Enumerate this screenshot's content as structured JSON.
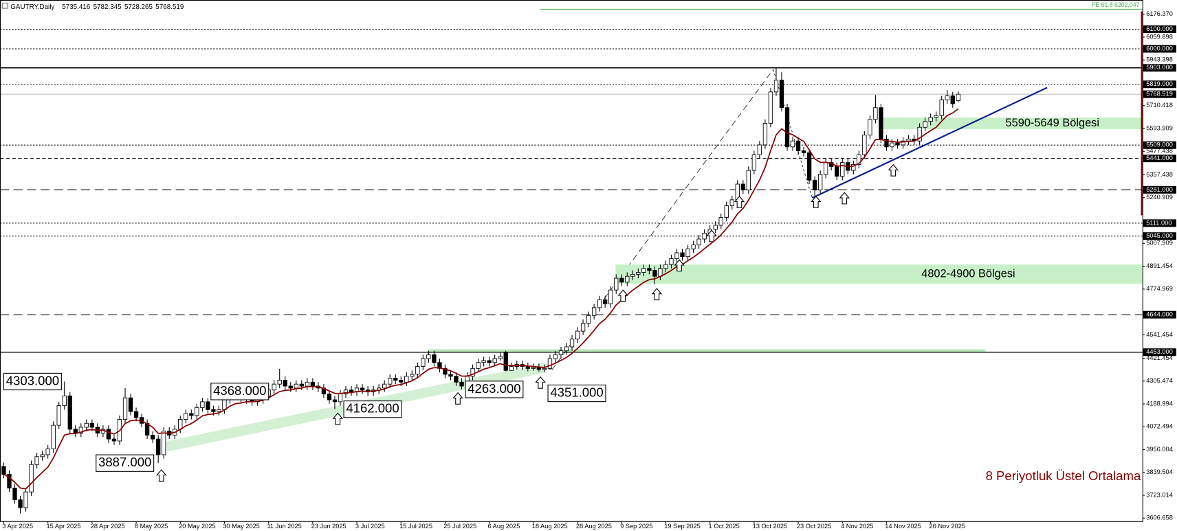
{
  "chart_data": {
    "type": "candlestick",
    "title": "GAUTRY,Daily",
    "categories": [
      "3 Apr 2025",
      null,
      null,
      null,
      null,
      null,
      null,
      null,
      "15 Apr 2025",
      null,
      null,
      null,
      null,
      null,
      null,
      null,
      "28 Apr 2025",
      null,
      null,
      null,
      null,
      null,
      null,
      null,
      "8 May 2025",
      null,
      null,
      null,
      null,
      null,
      null,
      null,
      "20 May 2025",
      null,
      null,
      null,
      null,
      null,
      null,
      null,
      "30 May 2025",
      null,
      null,
      null,
      null,
      null,
      null,
      null,
      "11 Jun 2025",
      null,
      null,
      null,
      null,
      null,
      null,
      null,
      "23 Jun 2025",
      null,
      null,
      null,
      null,
      null,
      null,
      null,
      "3 Jul 2025",
      null,
      null,
      null,
      null,
      null,
      null,
      null,
      "15 Jul 2025",
      null,
      null,
      null,
      null,
      null,
      null,
      null,
      "25 Jul 2025",
      null,
      null,
      null,
      null,
      null,
      null,
      null,
      "6 Aug 2025",
      null,
      null,
      null,
      null,
      null,
      null,
      null,
      "18 Aug 2025",
      null,
      null,
      null,
      null,
      null,
      null,
      null,
      "28 Aug 2025",
      null,
      null,
      null,
      null,
      null,
      null,
      null,
      "9 Sep 2025",
      null,
      null,
      null,
      null,
      null,
      null,
      null,
      "19 Sep 2025",
      null,
      null,
      null,
      null,
      null,
      null,
      null,
      "1 Oct 2025",
      null,
      null,
      null,
      null,
      null,
      null,
      null,
      "13 Oct 2025",
      null,
      null,
      null,
      null,
      null,
      null,
      null,
      "23 Oct 2025",
      null,
      null,
      null,
      null,
      null,
      null,
      null,
      "4 Nov 2025",
      null,
      null,
      null,
      null,
      null,
      null,
      null,
      "14 Nov 2025",
      null,
      null,
      null,
      null,
      null,
      null,
      null,
      "26 Nov 2025",
      null,
      null,
      null,
      null,
      null
    ],
    "open": [
      3870,
      3830,
      3760,
      3700,
      3660,
      3740,
      3880,
      3920,
      3930,
      3960,
      4080,
      4180,
      4230,
      4060,
      4040,
      4070,
      4090,
      4070,
      4040,
      4060,
      4010,
      4000,
      4110,
      4220,
      4150,
      4120,
      4090,
      4030,
      4010,
      3930,
      4050,
      4030,
      4060,
      4110,
      4140,
      4130,
      4170,
      4200,
      4160,
      4150,
      4160,
      4210,
      4250,
      4230,
      4210,
      4220,
      4200,
      4210,
      4230,
      4260,
      4290,
      4310,
      4280,
      4270,
      4290,
      4280,
      4300,
      4280,
      4270,
      4240,
      4210,
      4200,
      4240,
      4260,
      4250,
      4270,
      4260,
      4250,
      4260,
      4270,
      4290,
      4320,
      4310,
      4300,
      4330,
      4340,
      4380,
      4420,
      4440,
      4400,
      4370,
      4340,
      4330,
      4300,
      4280,
      4330,
      4370,
      4400,
      4410,
      4400,
      4420,
      4450,
      4360,
      4380,
      4390,
      4380,
      4370,
      4375,
      4365,
      4370,
      4420,
      4440,
      4460,
      4480,
      4520,
      4560,
      4600,
      4640,
      4680,
      4720,
      4700,
      4770,
      4830,
      4810,
      4840,
      4850,
      4860,
      4880,
      4870,
      4840,
      4880,
      4900,
      4930,
      4960,
      4940,
      4980,
      5000,
      5030,
      5060,
      5080,
      5100,
      5140,
      5200,
      5230,
      5310,
      5280,
      5380,
      5460,
      5510,
      5620,
      5780,
      5840,
      5700,
      5500,
      5530,
      5480,
      5470,
      5330,
      5280,
      5360,
      5420,
      5400,
      5350,
      5420,
      5380,
      5410,
      5460,
      5560,
      5640,
      5700,
      5540,
      5500,
      5520,
      5510,
      5530,
      5540,
      5530,
      5600,
      5630,
      5650,
      5660,
      5740,
      5760,
      5735.416
    ],
    "high": [
      3890,
      3850,
      3780,
      3720,
      3760,
      3900,
      3940,
      3950,
      3980,
      4100,
      4200,
      4303,
      4250,
      4080,
      4090,
      4110,
      4110,
      4090,
      4080,
      4080,
      4030,
      4130,
      4270,
      4240,
      4170,
      4140,
      4110,
      4050,
      4030,
      4070,
      4070,
      4080,
      4130,
      4160,
      4160,
      4190,
      4220,
      4220,
      4180,
      4180,
      4230,
      4270,
      4270,
      4250,
      4240,
      4240,
      4230,
      4250,
      4280,
      4310,
      4368,
      4330,
      4300,
      4310,
      4310,
      4320,
      4320,
      4300,
      4290,
      4260,
      4230,
      4260,
      4280,
      4280,
      4290,
      4290,
      4280,
      4280,
      4290,
      4310,
      4340,
      4340,
      4330,
      4350,
      4360,
      4400,
      4440,
      4460,
      4460,
      4420,
      4390,
      4360,
      4350,
      4320,
      4350,
      4390,
      4420,
      4430,
      4430,
      4440,
      4450,
      4460,
      4400,
      4410,
      4410,
      4400,
      4395,
      4395,
      4390,
      4440,
      4460,
      4480,
      4500,
      4540,
      4580,
      4620,
      4660,
      4700,
      4740,
      4740,
      4790,
      4850,
      4850,
      4860,
      4870,
      4880,
      4900,
      4900,
      4890,
      4900,
      4920,
      4950,
      4980,
      4980,
      5000,
      5020,
      5050,
      5080,
      5100,
      5120,
      5160,
      5220,
      5250,
      5330,
      5330,
      5400,
      5480,
      5530,
      5640,
      5800,
      5903,
      5880,
      5720,
      5550,
      5550,
      5500,
      5490,
      5350,
      5380,
      5440,
      5440,
      5420,
      5440,
      5440,
      5430,
      5480,
      5580,
      5660,
      5765,
      5720,
      5560,
      5540,
      5540,
      5550,
      5560,
      5560,
      5620,
      5650,
      5670,
      5680,
      5760,
      5790,
      5780,
      5782.345
    ],
    "low": [
      3810,
      3740,
      3680,
      3630,
      3640,
      3720,
      3860,
      3900,
      3910,
      3940,
      4060,
      4160,
      4040,
      4020,
      4020,
      4050,
      4050,
      4020,
      4020,
      3990,
      3980,
      3980,
      4090,
      4130,
      4100,
      4070,
      4010,
      3990,
      3887,
      3910,
      4010,
      4010,
      4040,
      4090,
      4110,
      4110,
      4150,
      4140,
      4130,
      4130,
      4140,
      4190,
      4210,
      4190,
      4190,
      4180,
      4180,
      4190,
      4210,
      4240,
      4270,
      4260,
      4250,
      4250,
      4260,
      4260,
      4260,
      4250,
      4220,
      4190,
      4162,
      4180,
      4220,
      4230,
      4230,
      4240,
      4230,
      4230,
      4240,
      4250,
      4270,
      4290,
      4280,
      4280,
      4310,
      4320,
      4360,
      4400,
      4380,
      4350,
      4320,
      4310,
      4280,
      4263,
      4270,
      4310,
      4350,
      4380,
      4380,
      4380,
      4410,
      4355,
      4358,
      4365,
      4362,
      4356,
      4358,
      4354,
      4351,
      4362,
      4400,
      4420,
      4440,
      4460,
      4500,
      4540,
      4580,
      4620,
      4660,
      4680,
      4680,
      4750,
      4790,
      4790,
      4820,
      4830,
      4840,
      4850,
      4800,
      4820,
      4860,
      4880,
      4910,
      4920,
      4920,
      4960,
      4980,
      5010,
      5040,
      5060,
      5080,
      5120,
      5180,
      5210,
      5260,
      5260,
      5360,
      5440,
      5490,
      5600,
      5760,
      5680,
      5480,
      5480,
      5460,
      5450,
      5310,
      5240,
      5260,
      5340,
      5380,
      5330,
      5330,
      5360,
      5360,
      5390,
      5440,
      5540,
      5620,
      5520,
      5480,
      5480,
      5490,
      5490,
      5510,
      5510,
      5510,
      5580,
      5610,
      5630,
      5640,
      5720,
      5700,
      5728.265
    ],
    "close": [
      3830,
      3760,
      3700,
      3660,
      3740,
      3880,
      3920,
      3930,
      3960,
      4080,
      4180,
      4230,
      4060,
      4040,
      4070,
      4090,
      4070,
      4040,
      4060,
      4010,
      4000,
      4110,
      4220,
      4150,
      4120,
      4090,
      4030,
      4010,
      3930,
      4050,
      4030,
      4060,
      4110,
      4140,
      4130,
      4170,
      4200,
      4160,
      4150,
      4160,
      4210,
      4250,
      4230,
      4210,
      4220,
      4200,
      4210,
      4230,
      4260,
      4290,
      4310,
      4280,
      4270,
      4290,
      4280,
      4300,
      4280,
      4270,
      4240,
      4210,
      4200,
      4240,
      4260,
      4250,
      4270,
      4260,
      4250,
      4260,
      4270,
      4290,
      4320,
      4310,
      4300,
      4330,
      4340,
      4380,
      4420,
      4440,
      4400,
      4370,
      4340,
      4330,
      4300,
      4280,
      4330,
      4370,
      4400,
      4410,
      4400,
      4420,
      4430,
      4360,
      4380,
      4390,
      4380,
      4370,
      4375,
      4365,
      4370,
      4420,
      4440,
      4460,
      4480,
      4520,
      4560,
      4600,
      4640,
      4680,
      4720,
      4700,
      4770,
      4830,
      4810,
      4840,
      4850,
      4860,
      4880,
      4870,
      4840,
      4880,
      4900,
      4930,
      4960,
      4940,
      4980,
      5000,
      5030,
      5060,
      5080,
      5100,
      5140,
      5200,
      5230,
      5310,
      5280,
      5380,
      5460,
      5510,
      5620,
      5780,
      5840,
      5700,
      5500,
      5530,
      5480,
      5470,
      5330,
      5280,
      5360,
      5420,
      5400,
      5350,
      5420,
      5380,
      5410,
      5460,
      5560,
      5640,
      5700,
      5540,
      5500,
      5520,
      5510,
      5530,
      5540,
      5530,
      5600,
      5630,
      5650,
      5660,
      5740,
      5760,
      5720,
      5768.519
    ],
    "up_color": "#ffffff",
    "down_color": "#000000",
    "ema": {
      "name": "8 Periyotluk Üstel Ortalama",
      "color": "#8b0000",
      "values": [
        3830,
        3814,
        3789,
        3760,
        3756,
        3784,
        3814,
        3840,
        3867,
        3914,
        3973,
        4030,
        4037,
        4038,
        4045,
        4055,
        4058,
        4054,
        4055,
        4045,
        4035,
        4052,
        4089,
        4103,
        4107,
        4103,
        4087,
        4070,
        4039,
        4041,
        4039,
        4044,
        4059,
        4077,
        4089,
        4107,
        4128,
        4135,
        4138,
        4143,
        4158,
        4178,
        4190,
        4194,
        4200,
        4200,
        4202,
        4208,
        4220,
        4236,
        4252,
        4258,
        4261,
        4267,
        4270,
        4277,
        4278,
        4276,
        4268,
        4255,
        4243,
        4242,
        4246,
        4247,
        4252,
        4254,
        4253,
        4255,
        4258,
        4265,
        4277,
        4284,
        4288,
        4297,
        4307,
        4323,
        4345,
        4366,
        4374,
        4373,
        4366,
        4358,
        4345,
        4331,
        4331,
        4340,
        4353,
        4366,
        4374,
        4384,
        4394,
        4386,
        4385,
        4386,
        4385,
        4382,
        4380,
        4377,
        4375,
        4385,
        4397,
        4411,
        4426,
        4447,
        4472,
        4500,
        4531,
        4564,
        4599,
        4621,
        4654,
        4693,
        4719,
        4746,
        4769,
        4789,
        4809,
        4823,
        4827,
        4839,
        4853,
        4870,
        4890,
        4901,
        4919,
        4937,
        4958,
        4981,
        5003,
        5025,
        5051,
        5084,
        5116,
        5159,
        5186,
        5229,
        5280,
        5331,
        5395,
        5481,
        5561,
        5592,
        5571,
        5562,
        5544,
        5528,
        5484,
        5439,
        5421,
        5421,
        5416,
        5401,
        5405,
        5399,
        5402,
        5415,
        5447,
        5490,
        5537,
        5538,
        5530,
        5528,
        5524,
        5525,
        5528,
        5529,
        5545,
        5564,
        5583,
        5600,
        5631,
        5660,
        5673,
        5694
      ]
    },
    "ylim": [
      3591,
      6249
    ],
    "yticks": [
      {
        "value": 6176.37,
        "label": "6176.370"
      },
      6059.898,
      5943.398,
      5710.418,
      5593.909,
      5477.438,
      5357.438,
      5240.909,
      5007.909,
      4891.454,
      4774.969,
      4541.454,
      4421.454,
      4305.474,
      4188.994,
      4072.494,
      3956.004,
      3839.504,
      3723.014,
      3606.658
    ],
    "levels": [
      {
        "value": 6100,
        "label": "6100.000",
        "style": "dot"
      },
      {
        "value": 6000,
        "label": "6000.000",
        "style": "dot"
      },
      {
        "value": 5903,
        "label": "5903.000",
        "style": "solid"
      },
      {
        "value": 5819,
        "label": "5819.000",
        "style": "dot"
      },
      {
        "value": 5768.519,
        "label": "5768.519",
        "style": "current"
      },
      {
        "value": 5509,
        "label": "5509.000",
        "style": "dot"
      },
      {
        "value": 5441,
        "label": "5441.000",
        "style": "dashdot"
      },
      {
        "value": 5281,
        "label": "5281.000",
        "style": "dash"
      },
      {
        "value": 5111,
        "label": "5111.000",
        "style": "dot"
      },
      {
        "value": 5045,
        "label": "5045.000",
        "style": "dot"
      },
      {
        "value": 4644,
        "label": "4644.000",
        "style": "dash"
      },
      {
        "value": 4453,
        "label": "4453.000",
        "style": "solid"
      }
    ],
    "fe_level": {
      "value": 6202.047,
      "label": "FE 61.8 6202.047",
      "color": "#4caf50"
    },
    "zones": [
      {
        "low": 5590,
        "high": 5649,
        "label": "5590-5649 Bölgesi",
        "color": "#c8f0c8"
      },
      {
        "low": 4802,
        "high": 4900,
        "label": "4802-4900 Bölgesi",
        "color": "#c8f0c8"
      }
    ],
    "annotations": [
      {
        "value": 4303,
        "label": "4303.000"
      },
      {
        "value": 3887,
        "label": "3887.000"
      },
      {
        "value": 4368,
        "label": "4368.000"
      },
      {
        "value": 4162,
        "label": "4162.000"
      },
      {
        "value": 4263,
        "label": "4263.000"
      },
      {
        "value": 4351,
        "label": "4351.000"
      }
    ],
    "trendline_color": "#0a1e8c"
  }
}
